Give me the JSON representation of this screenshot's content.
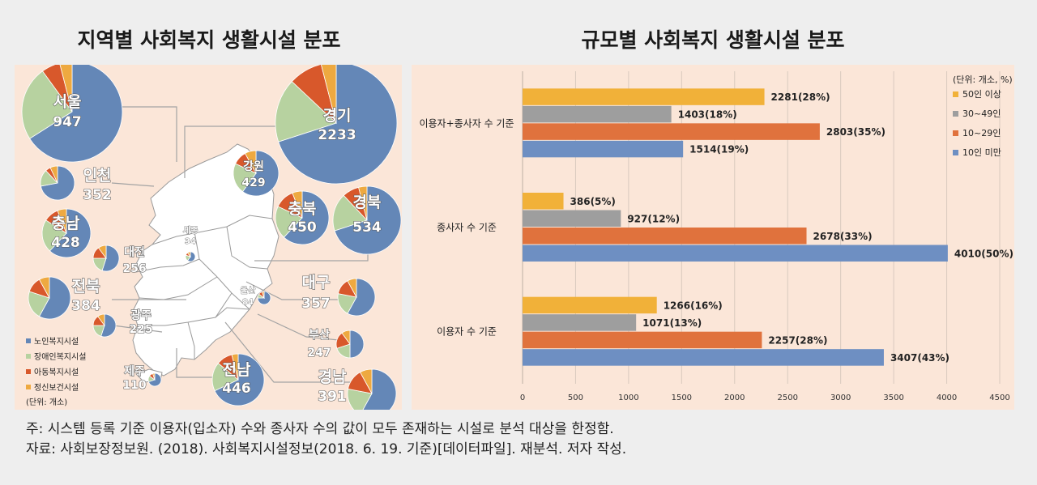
{
  "chart_data": [
    {
      "type": "pie",
      "title": "지역별 사회복지 생활시설 분포",
      "unit_label": "(단위: 개소)",
      "legend": [
        {
          "name": "노인복지시설",
          "color": "#6487b7"
        },
        {
          "name": "장애인복지시설",
          "color": "#b7d2a0"
        },
        {
          "name": "아동복지시설",
          "color": "#d8582b"
        },
        {
          "name": "정신보건시설",
          "color": "#eea940"
        }
      ],
      "regions": [
        {
          "name": "서울",
          "total": "947",
          "shares": [
            0.66,
            0.24,
            0.06,
            0.04
          ]
        },
        {
          "name": "경기",
          "total": "2233",
          "shares": [
            0.7,
            0.17,
            0.09,
            0.04
          ]
        },
        {
          "name": "인천",
          "total": "352",
          "shares": [
            0.72,
            0.16,
            0.05,
            0.07
          ]
        },
        {
          "name": "강원",
          "total": "429",
          "shares": [
            0.6,
            0.22,
            0.1,
            0.08
          ]
        },
        {
          "name": "충북",
          "total": "450",
          "shares": [
            0.62,
            0.2,
            0.12,
            0.06
          ]
        },
        {
          "name": "경북",
          "total": "534",
          "shares": [
            0.7,
            0.18,
            0.08,
            0.04
          ]
        },
        {
          "name": "충남",
          "total": "428",
          "shares": [
            0.62,
            0.22,
            0.1,
            0.06
          ]
        },
        {
          "name": "세종",
          "total": "34",
          "shares": [
            0.6,
            0.2,
            0.1,
            0.1
          ]
        },
        {
          "name": "대전",
          "total": "256",
          "shares": [
            0.55,
            0.2,
            0.15,
            0.1
          ]
        },
        {
          "name": "전북",
          "total": "384",
          "shares": [
            0.58,
            0.22,
            0.12,
            0.08
          ]
        },
        {
          "name": "대구",
          "total": "357",
          "shares": [
            0.58,
            0.2,
            0.14,
            0.08
          ]
        },
        {
          "name": "울산",
          "total": "84",
          "shares": [
            0.75,
            0.1,
            0.1,
            0.05
          ]
        },
        {
          "name": "광주",
          "total": "225",
          "shares": [
            0.55,
            0.2,
            0.15,
            0.1
          ]
        },
        {
          "name": "부산",
          "total": "247",
          "shares": [
            0.5,
            0.2,
            0.2,
            0.1
          ]
        },
        {
          "name": "제주",
          "total": "110",
          "shares": [
            0.7,
            0.15,
            0.1,
            0.05
          ]
        },
        {
          "name": "전남",
          "total": "446",
          "shares": [
            0.68,
            0.18,
            0.1,
            0.04
          ]
        },
        {
          "name": "경남",
          "total": "391",
          "shares": [
            0.58,
            0.2,
            0.14,
            0.08
          ]
        }
      ]
    },
    {
      "type": "bar",
      "orientation": "horizontal",
      "title": "규모별 사회복지 생활시설 분포",
      "unit_label": "(단위: 개소, %)",
      "categories": [
        "이용자+종사자 수 기준",
        "종사자 수 기준",
        "이용자 수 기준"
      ],
      "series": [
        {
          "name": "50인 이상",
          "color": "#f1b139",
          "values": [
            2281,
            386,
            1266
          ],
          "labels": [
            "2281(28%)",
            "386(5%)",
            "1266(16%)"
          ]
        },
        {
          "name": "30~49인",
          "color": "#9e9e9e",
          "values": [
            1403,
            927,
            1071
          ],
          "labels": [
            "1403(18%)",
            "927(12%)",
            "1071(13%)"
          ]
        },
        {
          "name": "10~29인",
          "color": "#e0723d",
          "values": [
            2803,
            2678,
            2257
          ],
          "labels": [
            "2803(35%)",
            "2678(33%)",
            "2257(28%)"
          ]
        },
        {
          "name": "10인 미만",
          "color": "#6e8fc2",
          "values": [
            1514,
            4010,
            3407
          ],
          "labels": [
            "1514(19%)",
            "4010(50%)",
            "3407(43%)"
          ]
        }
      ],
      "xlim": [
        0,
        4500
      ],
      "xticks": [
        "0",
        "500",
        "1000",
        "1500",
        "2000",
        "2500",
        "3000",
        "3500",
        "4000",
        "4500"
      ],
      "grid": true,
      "legend_position": "right"
    }
  ],
  "notes": {
    "line1": "주: 시스템 등록 기준 이용자(입소자) 수와 종사자 수의 값이 모두 존재하는 시설로 분석 대상을 한정함.",
    "line2": "자료: 사회보장정보원. (2018). 사회복지시설정보(2018. 6. 19. 기준)[데이터파일]. 재분석. 저자 작성."
  }
}
